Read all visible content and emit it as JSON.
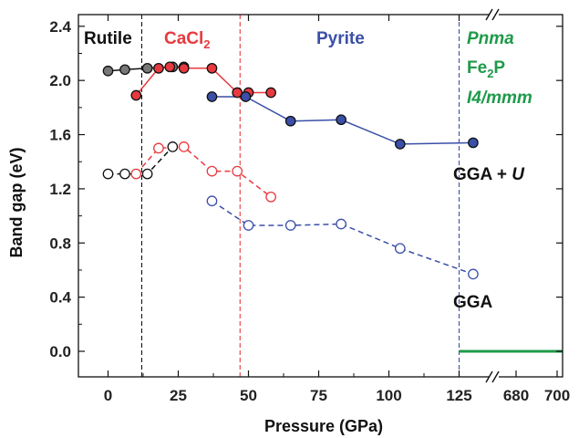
{
  "chart_data": {
    "type": "line",
    "xlabel": "Pressure (GPa)",
    "ylabel": "Band gap (eV)",
    "xlim": [
      -15,
      137
    ],
    "ylim": [
      -0.15,
      2.6
    ],
    "x_ticks": [
      "0",
      "25",
      "50",
      "75",
      "100",
      "125"
    ],
    "x_break_ticks": [
      "680",
      "700"
    ],
    "y_ticks": [
      "0.0",
      "0.4",
      "0.8",
      "1.2",
      "1.6",
      "2.0",
      "2.4"
    ],
    "phase_labels": [
      {
        "name": "Rutile",
        "color": "#111111"
      },
      {
        "name": "CaCl",
        "sub": "2",
        "color": "#e8393f"
      },
      {
        "name": "Pyrite",
        "color": "#3a4fa8"
      }
    ],
    "high_pressure_labels": [
      {
        "text": "Pnma",
        "italic": true
      },
      {
        "text": "Fe",
        "sub": "2",
        "tail": "P",
        "italic": false
      },
      {
        "text": "I4/mmm",
        "italic": true
      }
    ],
    "high_pressure_color": "#1e9a4a",
    "method_labels": {
      "gga_u": {
        "prefix": "GGA + ",
        "suffix": "U"
      },
      "gga": "GGA"
    },
    "boundaries": [
      {
        "x": 12,
        "color": "#111111"
      },
      {
        "x": 47,
        "color": "#e8393f"
      },
      {
        "x": 125,
        "color": "#3a4fa8"
      }
    ],
    "series": [
      {
        "method": "GGA+U",
        "phase": "Rutile",
        "color": "#111111",
        "fill": "#777777",
        "dashed": false,
        "x": [
          0,
          6,
          14,
          23,
          27
        ],
        "y": [
          2.07,
          2.08,
          2.09,
          2.1,
          2.1
        ]
      },
      {
        "method": "GGA+U",
        "phase": "CaCl2",
        "color": "#e8393f",
        "fill": "#e8393f",
        "dashed": false,
        "x": [
          10,
          18,
          22,
          27,
          37,
          46,
          50,
          58
        ],
        "y": [
          1.89,
          2.09,
          2.1,
          2.09,
          2.09,
          1.91,
          1.91,
          1.91
        ]
      },
      {
        "method": "GGA+U",
        "phase": "Pyrite",
        "color": "#3a4fa8",
        "fill": "#3a4fa8",
        "dashed": false,
        "x": [
          37,
          49,
          65,
          83,
          104,
          130
        ],
        "y": [
          1.88,
          1.88,
          1.7,
          1.71,
          1.53,
          1.54
        ]
      },
      {
        "method": "GGA",
        "phase": "Rutile",
        "color": "#111111",
        "fill": "none",
        "dashed": true,
        "x": [
          0,
          6,
          14,
          23
        ],
        "y": [
          1.31,
          1.31,
          1.31,
          1.51
        ]
      },
      {
        "method": "GGA",
        "phase": "CaCl2",
        "color": "#e8393f",
        "fill": "none",
        "dashed": true,
        "x": [
          10,
          18,
          27,
          37,
          46,
          58
        ],
        "y": [
          1.31,
          1.5,
          1.51,
          1.33,
          1.33,
          1.14
        ]
      },
      {
        "method": "GGA",
        "phase": "Pyrite",
        "color": "#3a4fa8",
        "fill": "none",
        "dashed": true,
        "x": [
          37,
          50,
          65,
          83,
          104,
          130
        ],
        "y": [
          1.11,
          0.93,
          0.93,
          0.94,
          0.76,
          0.57
        ]
      }
    ],
    "high_pressure_gap": {
      "value": 0.0,
      "x_range": [
        "125",
        "700"
      ]
    },
    "grid": false,
    "legend": "none"
  }
}
